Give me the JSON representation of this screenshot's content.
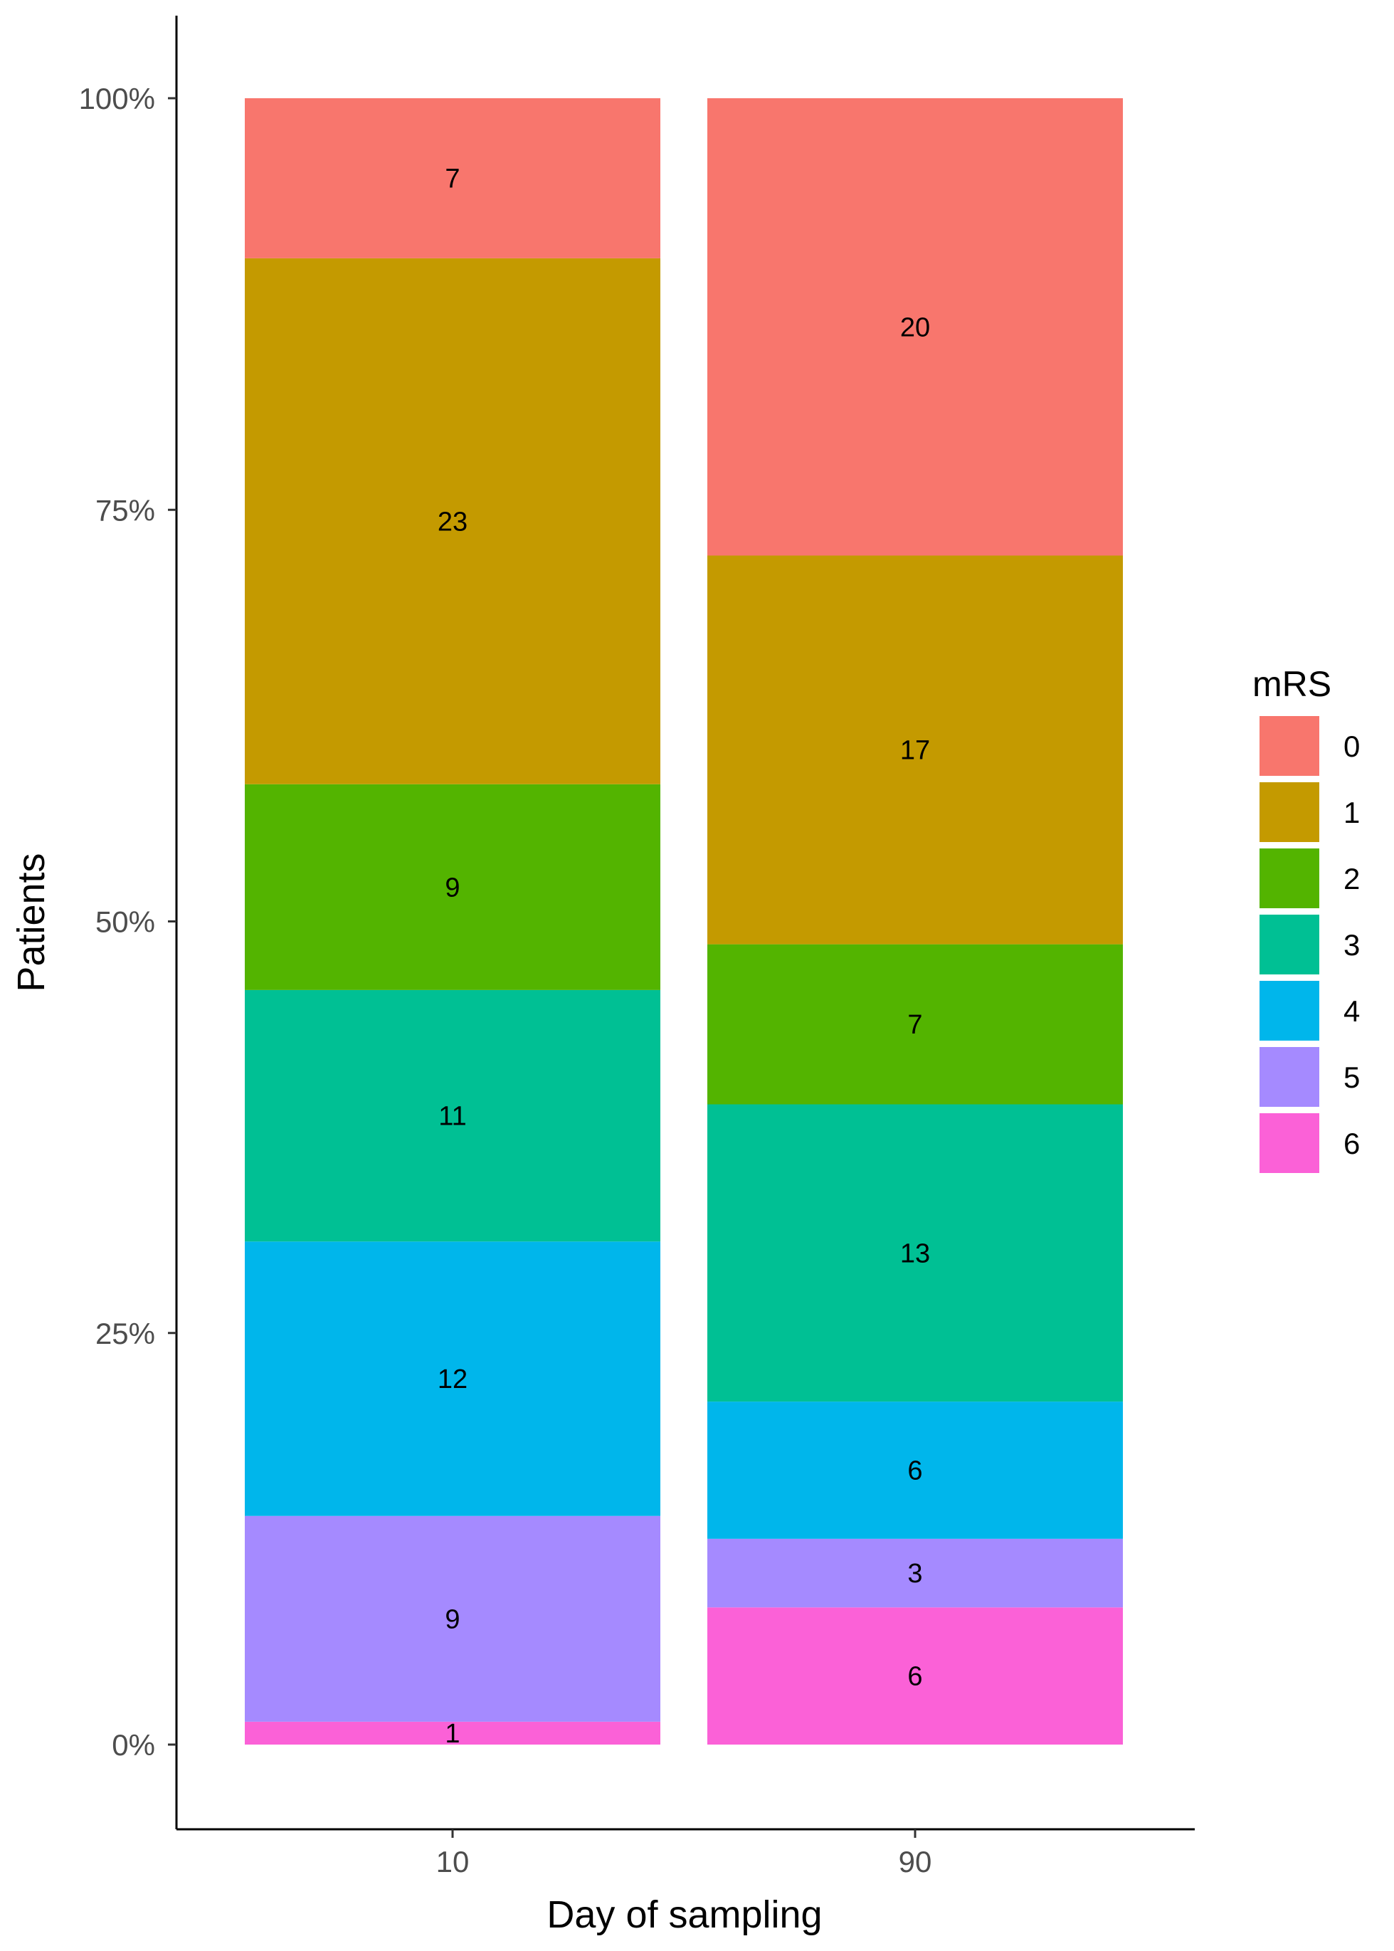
{
  "chart_data": {
    "type": "bar",
    "stacked": true,
    "normalized": true,
    "xlabel": "Day of sampling",
    "ylabel": "Patients",
    "categories": [
      "10",
      "90"
    ],
    "y_ticks": [
      "0%",
      "25%",
      "50%",
      "75%",
      "100%"
    ],
    "ylim": [
      0,
      1
    ],
    "grid": false,
    "legend": {
      "title": "mRS",
      "placement": "right",
      "entries": [
        "0",
        "1",
        "2",
        "3",
        "4",
        "5",
        "6"
      ]
    },
    "series": [
      {
        "name": "0",
        "color": "#F8766D",
        "values": [
          7,
          20
        ]
      },
      {
        "name": "1",
        "color": "#C49A00",
        "values": [
          23,
          17
        ]
      },
      {
        "name": "2",
        "color": "#53B400",
        "values": [
          9,
          7
        ]
      },
      {
        "name": "3",
        "color": "#00C094",
        "values": [
          11,
          13
        ]
      },
      {
        "name": "4",
        "color": "#00B6EB",
        "values": [
          12,
          6
        ]
      },
      {
        "name": "5",
        "color": "#A58AFF",
        "values": [
          9,
          3
        ]
      },
      {
        "name": "6",
        "color": "#FB61D7",
        "values": [
          1,
          6
        ]
      }
    ]
  }
}
